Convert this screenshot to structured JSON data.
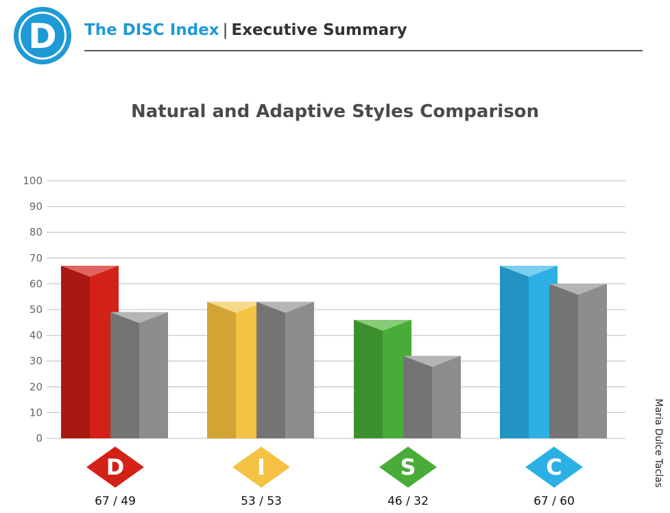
{
  "header": {
    "logo_letter": "D",
    "brand": "The DISC Index",
    "separator": "|",
    "section": "Executive Summary"
  },
  "person_name": "Maria Dulce  Taclas",
  "chart_data": {
    "type": "bar",
    "title": "Natural and Adaptive Styles Comparison",
    "categories": [
      "D",
      "I",
      "S",
      "C"
    ],
    "series": [
      {
        "values": [
          67,
          53,
          46,
          67
        ]
      },
      {
        "values": [
          49,
          53,
          32,
          60
        ]
      }
    ],
    "value_labels": [
      "67 / 49",
      "53 / 53",
      "46 / 32",
      "67 / 60"
    ],
    "ylim": [
      0,
      100
    ],
    "yticks": [
      0,
      10,
      20,
      30,
      40,
      50,
      60,
      70,
      80,
      90,
      100
    ],
    "grid": true,
    "colors": {
      "D": {
        "front": "#d42117",
        "side": "#a91812",
        "top": "#e06560"
      },
      "I": {
        "front": "#f5c244",
        "side": "#d2a434",
        "top": "#f8d98a"
      },
      "S": {
        "front": "#4aac38",
        "side": "#3c8f2e",
        "top": "#88cc78"
      },
      "C": {
        "front": "#2cb0e6",
        "side": "#2294c4",
        "top": "#7ccdf0"
      },
      "adaptive": {
        "front": "#8d8d8d",
        "side": "#747474",
        "top": "#b5b5b5"
      }
    }
  }
}
